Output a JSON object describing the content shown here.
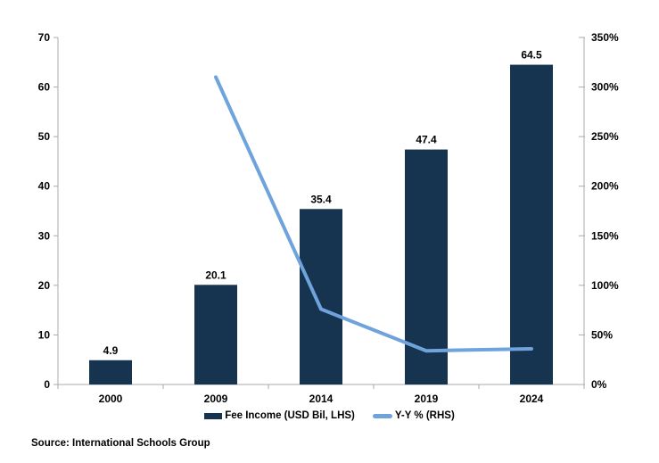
{
  "chart_data": {
    "type": "bar",
    "subtype": "combo-bar-line-dual-axis",
    "title": "",
    "categories": [
      "2000",
      "2009",
      "2014",
      "2019",
      "2024"
    ],
    "series": [
      {
        "name": "Fee Income (USD Bil, LHS)",
        "type": "bar",
        "axis": "left",
        "color": "#16334F",
        "values": [
          4.9,
          20.1,
          35.4,
          47.4,
          64.5
        ],
        "data_labels": [
          "4.9",
          "20.1",
          "35.4",
          "47.4",
          "64.5"
        ]
      },
      {
        "name": "Y-Y % (RHS)",
        "type": "line",
        "axis": "right",
        "color": "#6FA3DC",
        "x": [
          "2009",
          "2014",
          "2019",
          "2024"
        ],
        "values": [
          310,
          76,
          34,
          36
        ]
      }
    ],
    "left_axis": {
      "min": 0,
      "max": 70,
      "tick_labels": [
        "0",
        "10",
        "20",
        "30",
        "40",
        "50",
        "60",
        "70"
      ]
    },
    "right_axis": {
      "min": 0,
      "max": 350,
      "tick_labels": [
        "0%",
        "50%",
        "100%",
        "150%",
        "200%",
        "250%",
        "300%",
        "350%"
      ]
    },
    "grid": false,
    "legend_position": "bottom"
  },
  "legend": {
    "items": [
      {
        "label": "Fee Income (USD Bil, LHS)",
        "swatch": "bar",
        "color": "#16334F"
      },
      {
        "label": "Y-Y % (RHS)",
        "swatch": "line",
        "color": "#6FA3DC"
      }
    ]
  },
  "source": {
    "text": "Source: International Schools Group"
  },
  "colors": {
    "bar": "#16334F",
    "line": "#6FA3DC",
    "axis": "#ABABAB",
    "text": "#000000",
    "background": "#FFFFFF"
  }
}
